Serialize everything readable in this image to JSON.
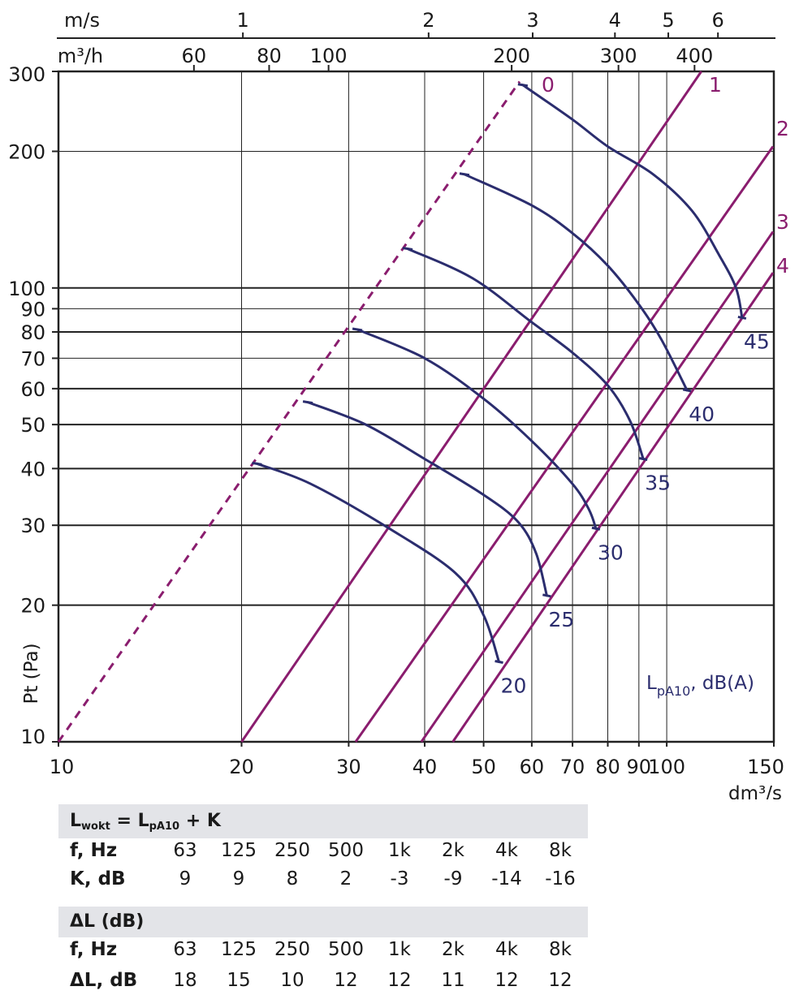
{
  "colors": {
    "fan_curve": "#2b2d6e",
    "system_line": "#8a1d6e",
    "grid": "#222222",
    "table_header_bg": "#e3e4e8"
  },
  "chart_data": {
    "type": "line",
    "x_scale": "log",
    "y_scale": "log",
    "xlim": [
      10,
      150
    ],
    "ylim": [
      10,
      300
    ],
    "xlabel": "dm³/s",
    "ylabel": "Pt (Pa)",
    "x_ticks": [
      10,
      20,
      30,
      40,
      50,
      60,
      70,
      80,
      90,
      100,
      150
    ],
    "y_ticks": [
      10,
      20,
      30,
      40,
      50,
      60,
      70,
      80,
      90,
      100,
      200,
      300
    ],
    "top_axis_velocity": {
      "label": "m/s",
      "ticks": [
        {
          "label": "1",
          "x": 20.1
        },
        {
          "label": "2",
          "x": 40.6
        },
        {
          "label": "3",
          "x": 60.2
        },
        {
          "label": "4",
          "x": 82.2
        },
        {
          "label": "5",
          "x": 100.6
        },
        {
          "label": "6",
          "x": 121.4
        }
      ]
    },
    "top_axis_flow": {
      "label": "m³/h",
      "ticks": [
        {
          "label": "60",
          "x": 16.7
        },
        {
          "label": "80",
          "x": 22.2
        },
        {
          "label": "100",
          "x": 27.8
        },
        {
          "label": "200",
          "x": 55.6
        },
        {
          "label": "300",
          "x": 83.3
        },
        {
          "label": "400",
          "x": 111.1
        }
      ]
    },
    "annotation": "LpA10, dB(A)",
    "system_lines": [
      {
        "name": "0",
        "dashed": true,
        "points": [
          [
            10,
            10
          ],
          [
            57.3,
            285
          ]
        ]
      },
      {
        "name": "1",
        "points": [
          [
            20,
            10
          ],
          [
            114,
            300
          ]
        ]
      },
      {
        "name": "2",
        "points": [
          [
            30.8,
            10
          ],
          [
            149.5,
            205
          ]
        ]
      },
      {
        "name": "3",
        "points": [
          [
            39.5,
            10
          ],
          [
            149.5,
            133
          ]
        ]
      },
      {
        "name": "4",
        "points": [
          [
            44.5,
            10
          ],
          [
            149.5,
            108
          ]
        ]
      }
    ],
    "fan_curves": [
      {
        "name": "20",
        "points": [
          [
            21.2,
            41
          ],
          [
            26,
            37
          ],
          [
            35,
            29.5
          ],
          [
            45,
            23.5
          ],
          [
            50,
            19
          ],
          [
            53,
            15
          ]
        ]
      },
      {
        "name": "25",
        "points": [
          [
            25.7,
            56
          ],
          [
            32,
            50
          ],
          [
            40,
            42
          ],
          [
            50,
            35
          ],
          [
            57,
            30.5
          ],
          [
            61,
            26
          ],
          [
            63.5,
            21
          ]
        ]
      },
      {
        "name": "30",
        "points": [
          [
            31,
            81
          ],
          [
            40,
            70
          ],
          [
            50,
            57
          ],
          [
            60,
            46
          ],
          [
            70,
            37
          ],
          [
            74.5,
            32.5
          ],
          [
            76.5,
            29.5
          ]
        ]
      },
      {
        "name": "35",
        "points": [
          [
            37.5,
            122
          ],
          [
            48,
            105
          ],
          [
            60,
            84
          ],
          [
            70,
            72
          ],
          [
            80,
            61
          ],
          [
            87,
            51
          ],
          [
            91.5,
            42
          ]
        ]
      },
      {
        "name": "40",
        "points": [
          [
            46.5,
            178
          ],
          [
            60,
            152
          ],
          [
            70,
            132
          ],
          [
            80,
            112
          ],
          [
            90,
            92
          ],
          [
            98,
            77
          ],
          [
            108,
            59.5
          ]
        ]
      },
      {
        "name": "45",
        "points": [
          [
            58,
            280
          ],
          [
            70,
            235
          ],
          [
            80,
            205
          ],
          [
            95,
            178
          ],
          [
            110,
            148
          ],
          [
            122,
            118
          ],
          [
            130,
            100
          ],
          [
            133,
            86
          ]
        ]
      }
    ]
  },
  "table1": {
    "header_main": "L",
    "header_sub": "wokt",
    "header_mid": " = L",
    "header_sub2": "pA10",
    "header_end": " + K",
    "row1_label": "f, Hz",
    "row1": [
      "63",
      "125",
      "250",
      "500",
      "1k",
      "2k",
      "4k",
      "8k"
    ],
    "row2_label": "K, dB",
    "row2": [
      "9",
      "9",
      "8",
      "2",
      "-3",
      "-9",
      "-14",
      "-16"
    ]
  },
  "table2": {
    "header": "ΔL (dB)",
    "row1_label": "f, Hz",
    "row1": [
      "63",
      "125",
      "250",
      "500",
      "1k",
      "2k",
      "4k",
      "8k"
    ],
    "row2_label": "ΔL, dB",
    "row2": [
      "18",
      "15",
      "10",
      "12",
      "12",
      "11",
      "12",
      "12"
    ]
  }
}
